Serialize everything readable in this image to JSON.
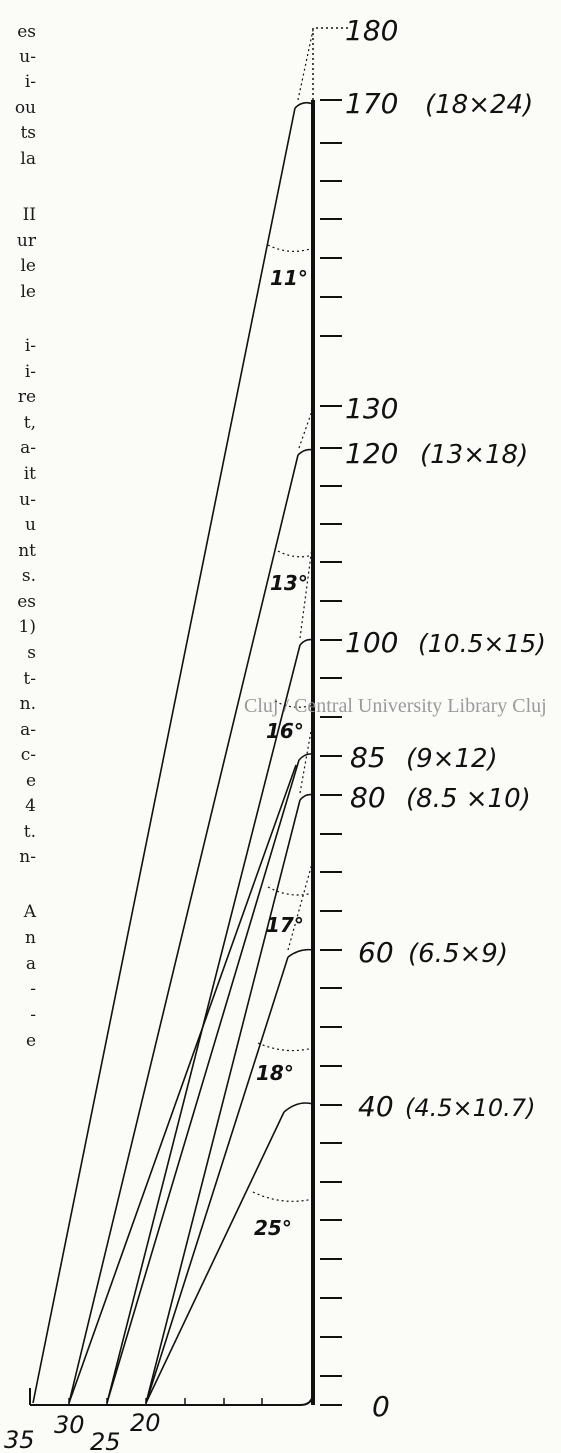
{
  "text_column": [
    "es",
    "u-",
    "i-",
    "ou",
    "ts",
    "la",
    "II",
    "ur",
    "le",
    "le",
    "i-",
    "i-",
    "re",
    "t,",
    "a-",
    "it",
    "u-",
    "u",
    "nt",
    "s.",
    "es",
    "1)",
    "s",
    "t-",
    "n.",
    "a-",
    "c-",
    "e",
    "4",
    "t.",
    "n-",
    "A",
    "n",
    "a",
    "-",
    "-",
    "e"
  ],
  "watermark": "Cluj / Central University Library Cluj",
  "scale_labels": [
    "180",
    "170",
    "130",
    "120",
    "100",
    "85",
    "80",
    "60",
    "40",
    "0"
  ],
  "format_labels": [
    {
      "for": "170",
      "text": "(18×24)"
    },
    {
      "for": "120",
      "text": "(13×18)"
    },
    {
      "for": "100",
      "text": "(10.5×15)"
    },
    {
      "for": "85",
      "text": "(9×12)"
    },
    {
      "for": "80",
      "text": "(8.5 ×10)"
    },
    {
      "for": "60",
      "text": "(6.5×9)"
    },
    {
      "for": "40",
      "text": "(4.5×10.7)"
    }
  ],
  "angle_labels": [
    "11°",
    "13°",
    "16°",
    "17°",
    "18°",
    "25°"
  ],
  "base_labels": [
    "35",
    "30",
    "25",
    "20"
  ]
}
